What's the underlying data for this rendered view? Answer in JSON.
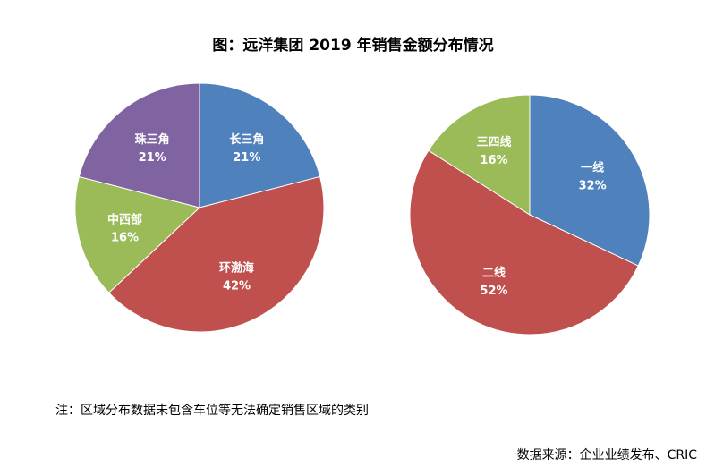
{
  "title": "图：远洋集团 2019 年销售金额分布情况",
  "note": "注：区域分布数据未包含车位等无法确定销售区域的类别",
  "source": "数据来源：企业业绩发布、CRIC",
  "chart_data": [
    {
      "type": "pie",
      "slices": [
        {
          "label": "长三角",
          "value": 21,
          "value_label": "21%",
          "color": "#4f81bd"
        },
        {
          "label": "环渤海",
          "value": 42,
          "value_label": "42%",
          "color": "#c0504d"
        },
        {
          "label": "中西部",
          "value": 16,
          "value_label": "16%",
          "color": "#9bbb59"
        },
        {
          "label": "珠三角",
          "value": 21,
          "value_label": "21%",
          "color": "#8064a2"
        }
      ]
    },
    {
      "type": "pie",
      "slices": [
        {
          "label": "一线",
          "value": 32,
          "value_label": "32%",
          "color": "#4f81bd"
        },
        {
          "label": "二线",
          "value": 52,
          "value_label": "52%",
          "color": "#c0504d"
        },
        {
          "label": "三四线",
          "value": 16,
          "value_label": "16%",
          "color": "#9bbb59"
        }
      ]
    }
  ]
}
